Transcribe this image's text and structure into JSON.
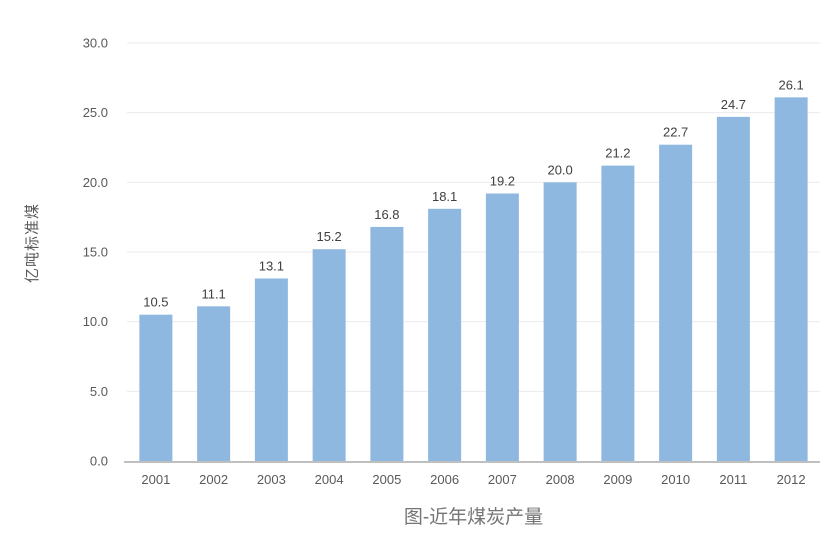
{
  "chart_data": {
    "type": "bar",
    "title": "图-近年煤炭产量",
    "ylabel": "亿吨标准煤",
    "xlabel": "",
    "categories": [
      "2001",
      "2002",
      "2003",
      "2004",
      "2005",
      "2006",
      "2007",
      "2008",
      "2009",
      "2010",
      "2011",
      "2012"
    ],
    "values": [
      10.5,
      11.1,
      13.1,
      15.2,
      16.8,
      18.1,
      19.2,
      20.0,
      21.2,
      22.7,
      24.7,
      26.1
    ],
    "ylim": [
      0,
      30
    ],
    "ytick_step": 5,
    "ytick_labels": [
      "0.0",
      "5.0",
      "10.0",
      "15.0",
      "20.0",
      "25.0",
      "30.0"
    ],
    "grid": true,
    "legend": false,
    "data_labels": true,
    "colors": {
      "bar_fill": "#8EB8DF",
      "grid_line": "#EBEBEB",
      "axis_line": "#BFBFBF",
      "tick_label": "#595959",
      "category_label": "#595959",
      "value_label": "#404040",
      "title": "#757575",
      "axis_title": "#595959"
    }
  }
}
